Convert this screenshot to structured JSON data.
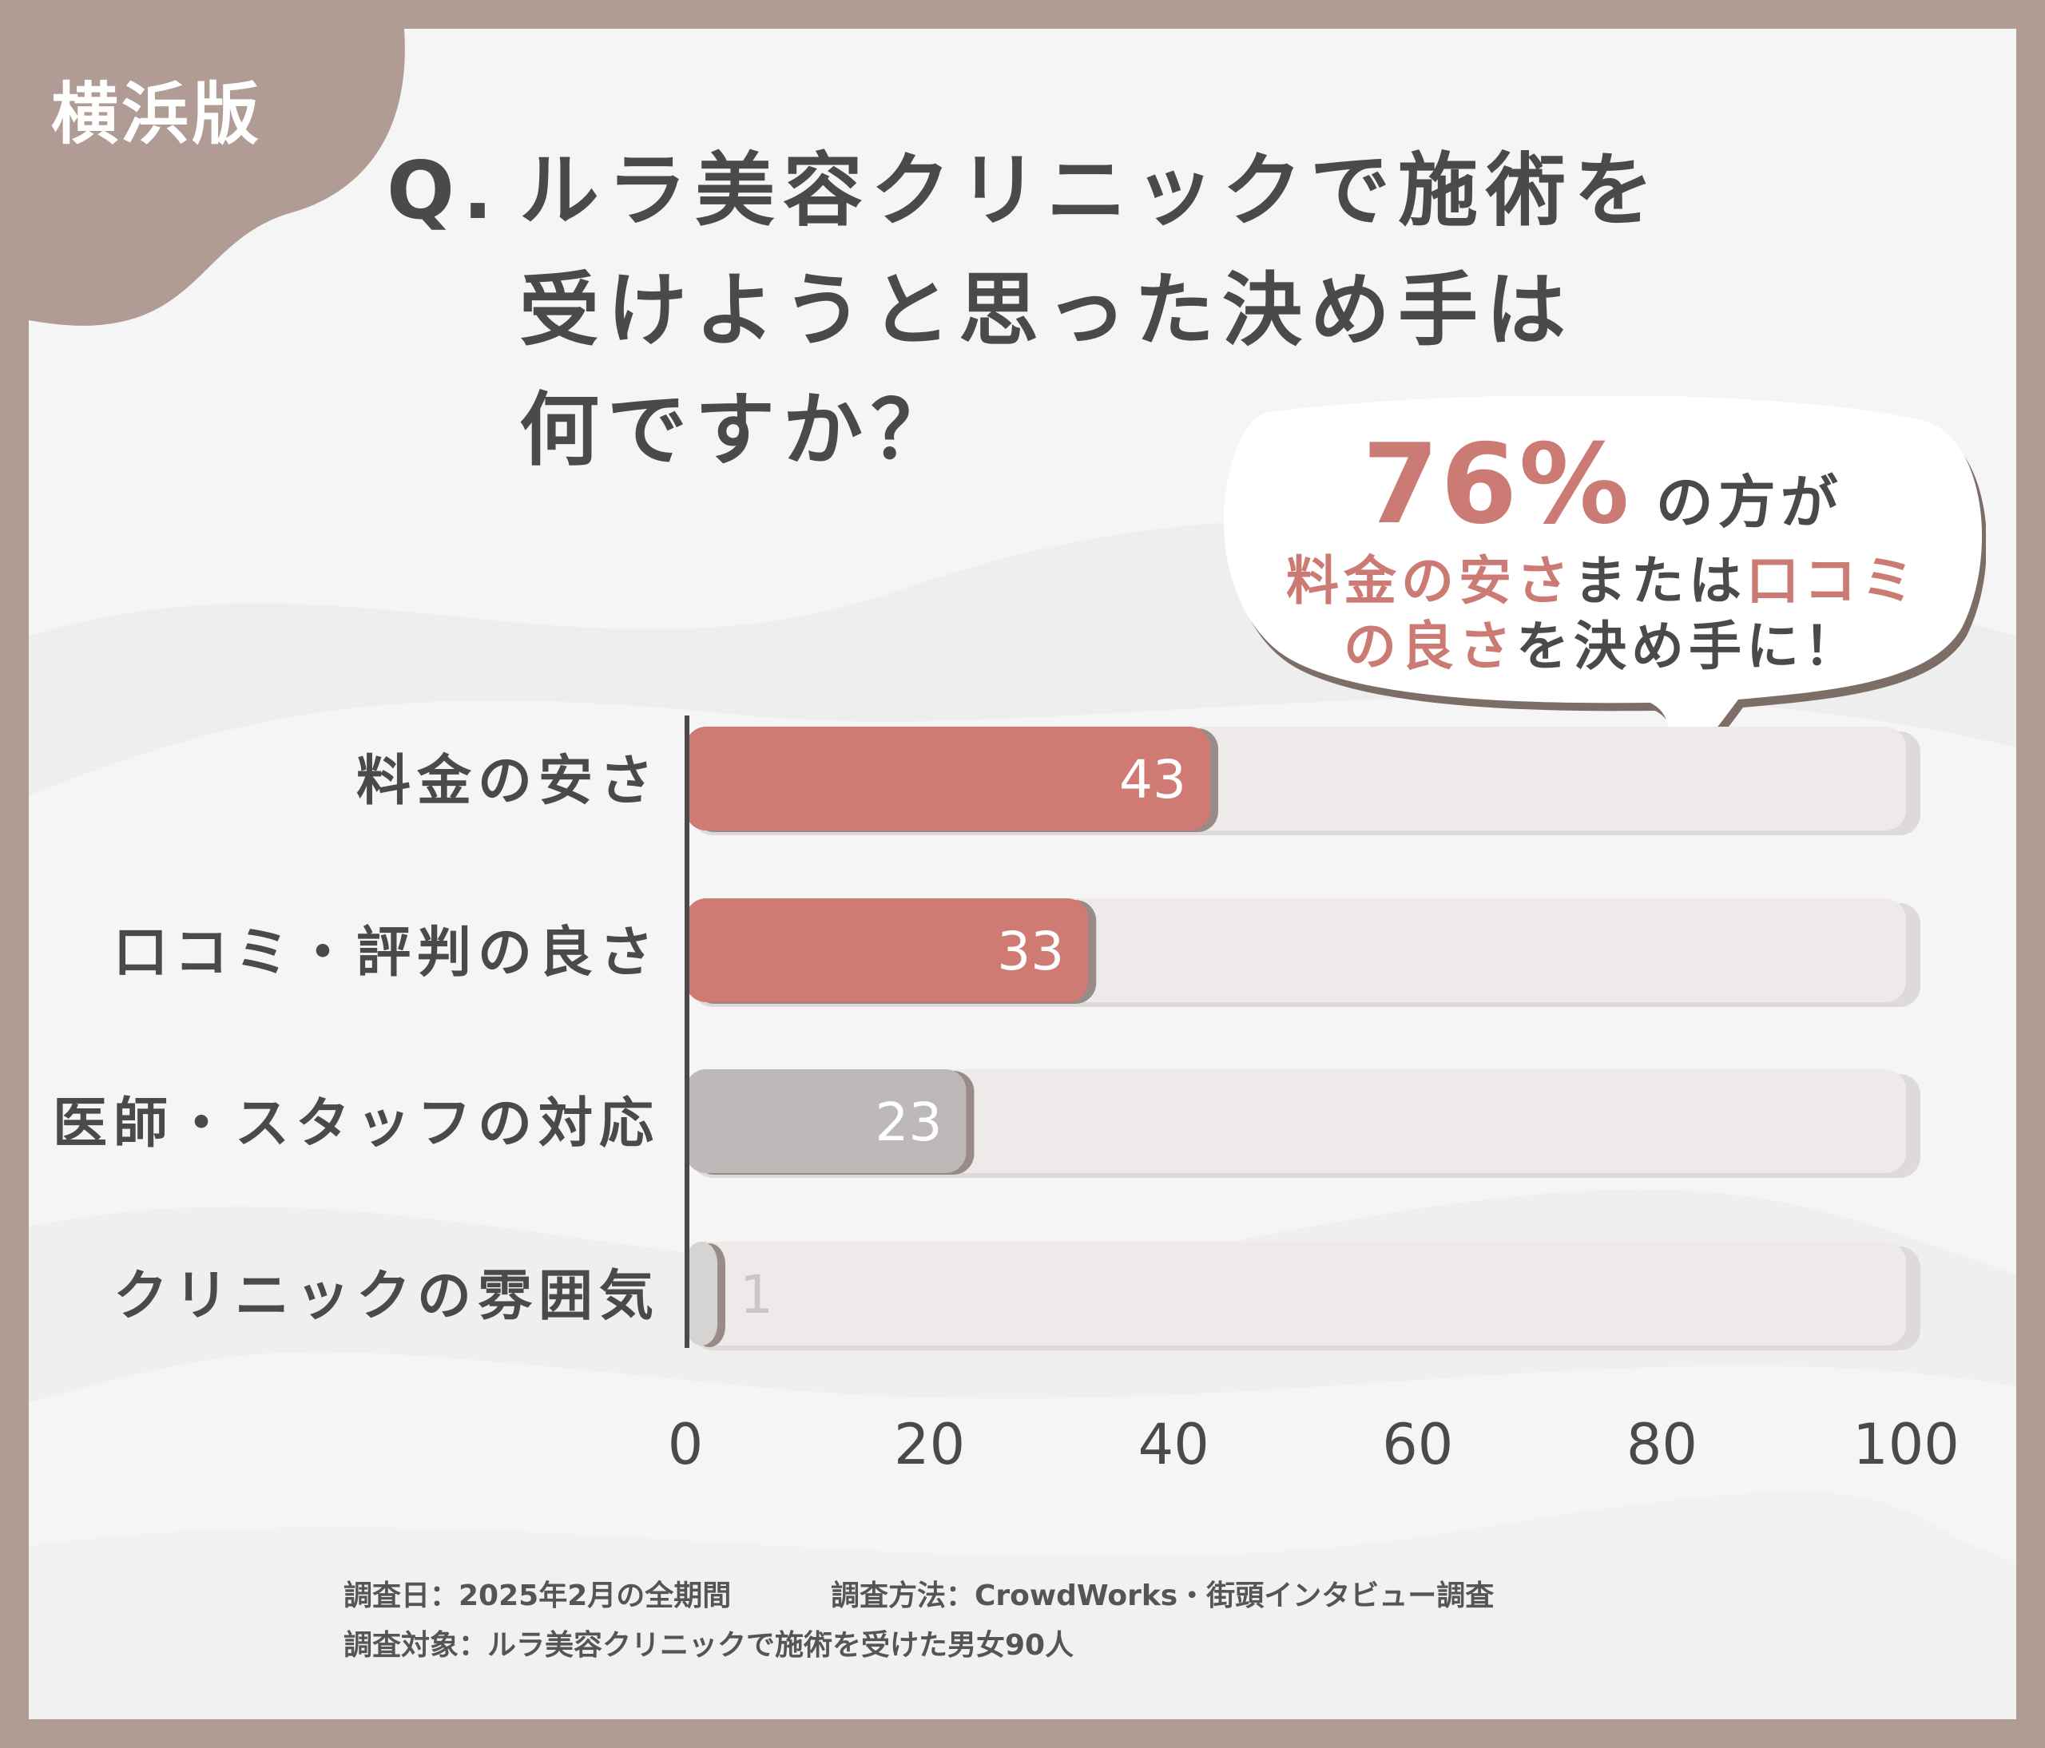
{
  "tag": "横浜版",
  "title": {
    "q": "Q.",
    "lines": [
      "ルラ美容クリニックで施術を",
      "受けようと思った決め手は",
      "何ですか？"
    ]
  },
  "callout": {
    "percent": "76%",
    "suffix": "の方が",
    "line2_a": "料金の安さ",
    "line2_b": "または",
    "line2_c": "口コミ",
    "line3_a": "の良さ",
    "line3_b": "を決め手に！"
  },
  "colors": {
    "accent": "#d07a74",
    "gray_bar": "#bdb9b8",
    "track": "#eeeaea",
    "text": "#4a4a4a",
    "frame": "#b09c95"
  },
  "chart_data": {
    "type": "bar",
    "orientation": "horizontal",
    "categories": [
      "料金の安さ",
      "口コミ・評判の良さ",
      "医師・スタッフの対応",
      "クリニックの雰囲気"
    ],
    "values": [
      43,
      33,
      23,
      1
    ],
    "bar_colors": [
      "#d07a74",
      "#d07a74",
      "#bdb9b8",
      "#d6d3d3"
    ],
    "xlim": [
      0,
      100
    ],
    "xticks": [
      0,
      20,
      40,
      60,
      80,
      100
    ],
    "grid": false
  },
  "footer": {
    "date": "調査日：2025年2月の全期間",
    "method": "調査方法：CrowdWorks・街頭インタビュー調査",
    "target": "調査対象：ルラ美容クリニックで施術を受けた男女90人"
  }
}
